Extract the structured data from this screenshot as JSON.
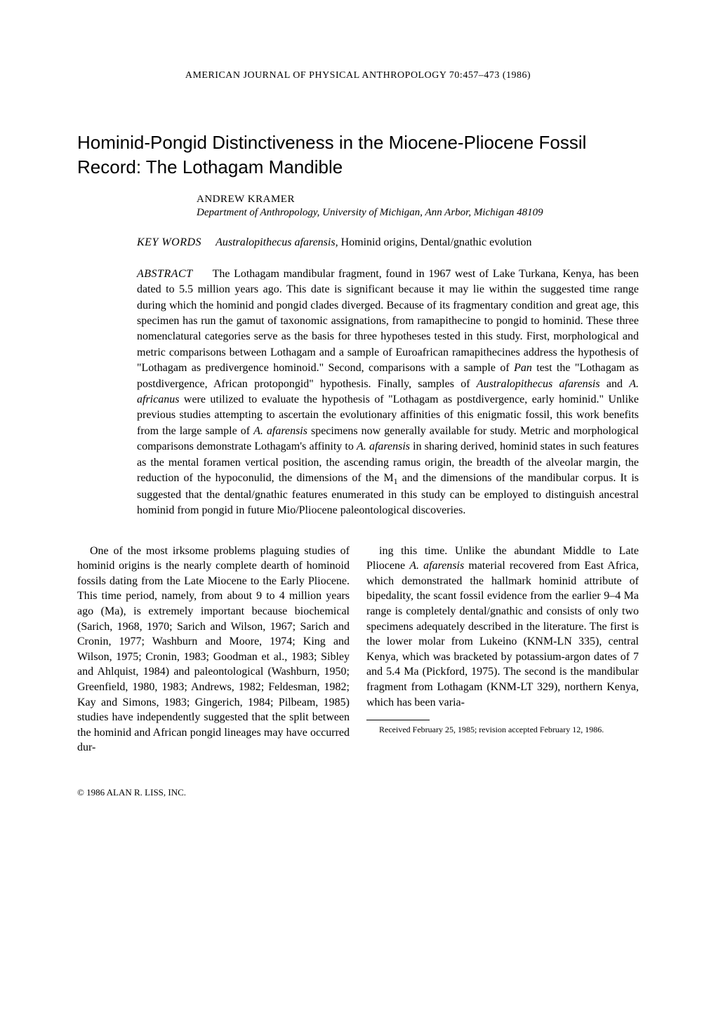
{
  "journal_header": "AMERICAN JOURNAL OF PHYSICAL ANTHROPOLOGY 70:457–473 (1986)",
  "title": "Hominid-Pongid Distinctiveness in the Miocene-Pliocene Fossil Record: The Lothagam Mandible",
  "author": {
    "name": "ANDREW KRAMER",
    "affiliation": "Department of Anthropology, University of Michigan, Ann Arbor, Michigan 48109"
  },
  "keywords": {
    "label": "KEY WORDS",
    "italic_term": "Australopithecus afarensis,",
    "rest": " Hominid origins, Dental/gnathic evolution"
  },
  "abstract": {
    "label": "ABSTRACT",
    "text_parts": {
      "p1": "The Lothagam mandibular fragment, found in 1967 west of Lake Turkana, Kenya, has been dated to 5.5 million years ago. This date is significant because it may lie within the suggested time range during which the hominid and pongid clades diverged. Because of its fragmentary condition and great age, this specimen has run the gamut of taxonomic assignations, from ramapithecine to pongid to hominid. These three nomenclatural categories serve as the basis for three hypotheses tested in this study. First, morphological and metric comparisons between Lothagam and a sample of Euroafrican ramapithecines address the hypothesis of \"Lothagam as predivergence hominoid.\" Second, comparisons with a sample of ",
      "i1": "Pan",
      "p2": " test the \"Lothagam as postdivergence, African protopongid\" hypothesis. Finally, samples of ",
      "i2": "Australopithecus afarensis",
      "p3": " and ",
      "i3": "A. africanus",
      "p4": " were utilized to evaluate the hypothesis of \"Lothagam as postdivergence, early hominid.\" Unlike previous studies attempting to ascertain the evolutionary affinities of this enigmatic fossil, this work benefits from the large sample of ",
      "i4": "A. afarensis",
      "p5": " specimens now generally available for study. Metric and morphological comparisons demonstrate Lothagam's affinity to ",
      "i5": "A. afarensis",
      "p6": " in sharing derived, hominid states in such features as the mental foramen vertical position, the ascending ramus origin, the breadth of the alveolar margin, the reduction of the hypoconulid, the dimensions of the M",
      "sub1": "1",
      "p7": " and the dimensions of the mandibular corpus. It is suggested that the dental/gnathic features enumerated in this study can be employed to distinguish ancestral hominid from pongid in future Mio/Pliocene paleontological discoveries."
    }
  },
  "body": {
    "col1": "One of the most irksome problems plaguing studies of hominid origins is the nearly complete dearth of hominoid fossils dating from the Late Miocene to the Early Pliocene. This time period, namely, from about 9 to 4 million years ago (Ma), is extremely important because biochemical (Sarich, 1968, 1970; Sarich and Wilson, 1967; Sarich and Cronin, 1977; Washburn and Moore, 1974; King and Wilson, 1975; Cronin, 1983; Goodman et al., 1983; Sibley and Ahlquist, 1984) and paleontological (Washburn, 1950; Greenfield, 1980, 1983; Andrews, 1982; Feldesman, 1982; Kay and Simons, 1983; Gingerich, 1984; Pilbeam, 1985) studies have independently suggested that the split between the hominid and African pongid lineages may have occurred dur-",
    "col2": {
      "p1": "ing this time. Unlike the abundant Middle to Late Pliocene ",
      "i1": "A. afarensis",
      "p2": " material recovered from East Africa, which demonstrated the hallmark hominid attribute of bipedality, the scant fossil evidence from the earlier 9–4 Ma range is completely dental/gnathic and consists of only two specimens adequately described in the literature. The first is the lower molar from Lukeino (KNM-LN 335), central Kenya, which was bracketed by potassium-argon dates of 7 and 5.4 Ma (Pickford, 1975). The second is the mandibular fragment from Lothagam (KNM-LT 329), northern Kenya, which has been varia-"
    }
  },
  "footnote": "Received February 25, 1985; revision accepted February 12, 1986.",
  "copyright": "© 1986 ALAN R. LISS, INC."
}
